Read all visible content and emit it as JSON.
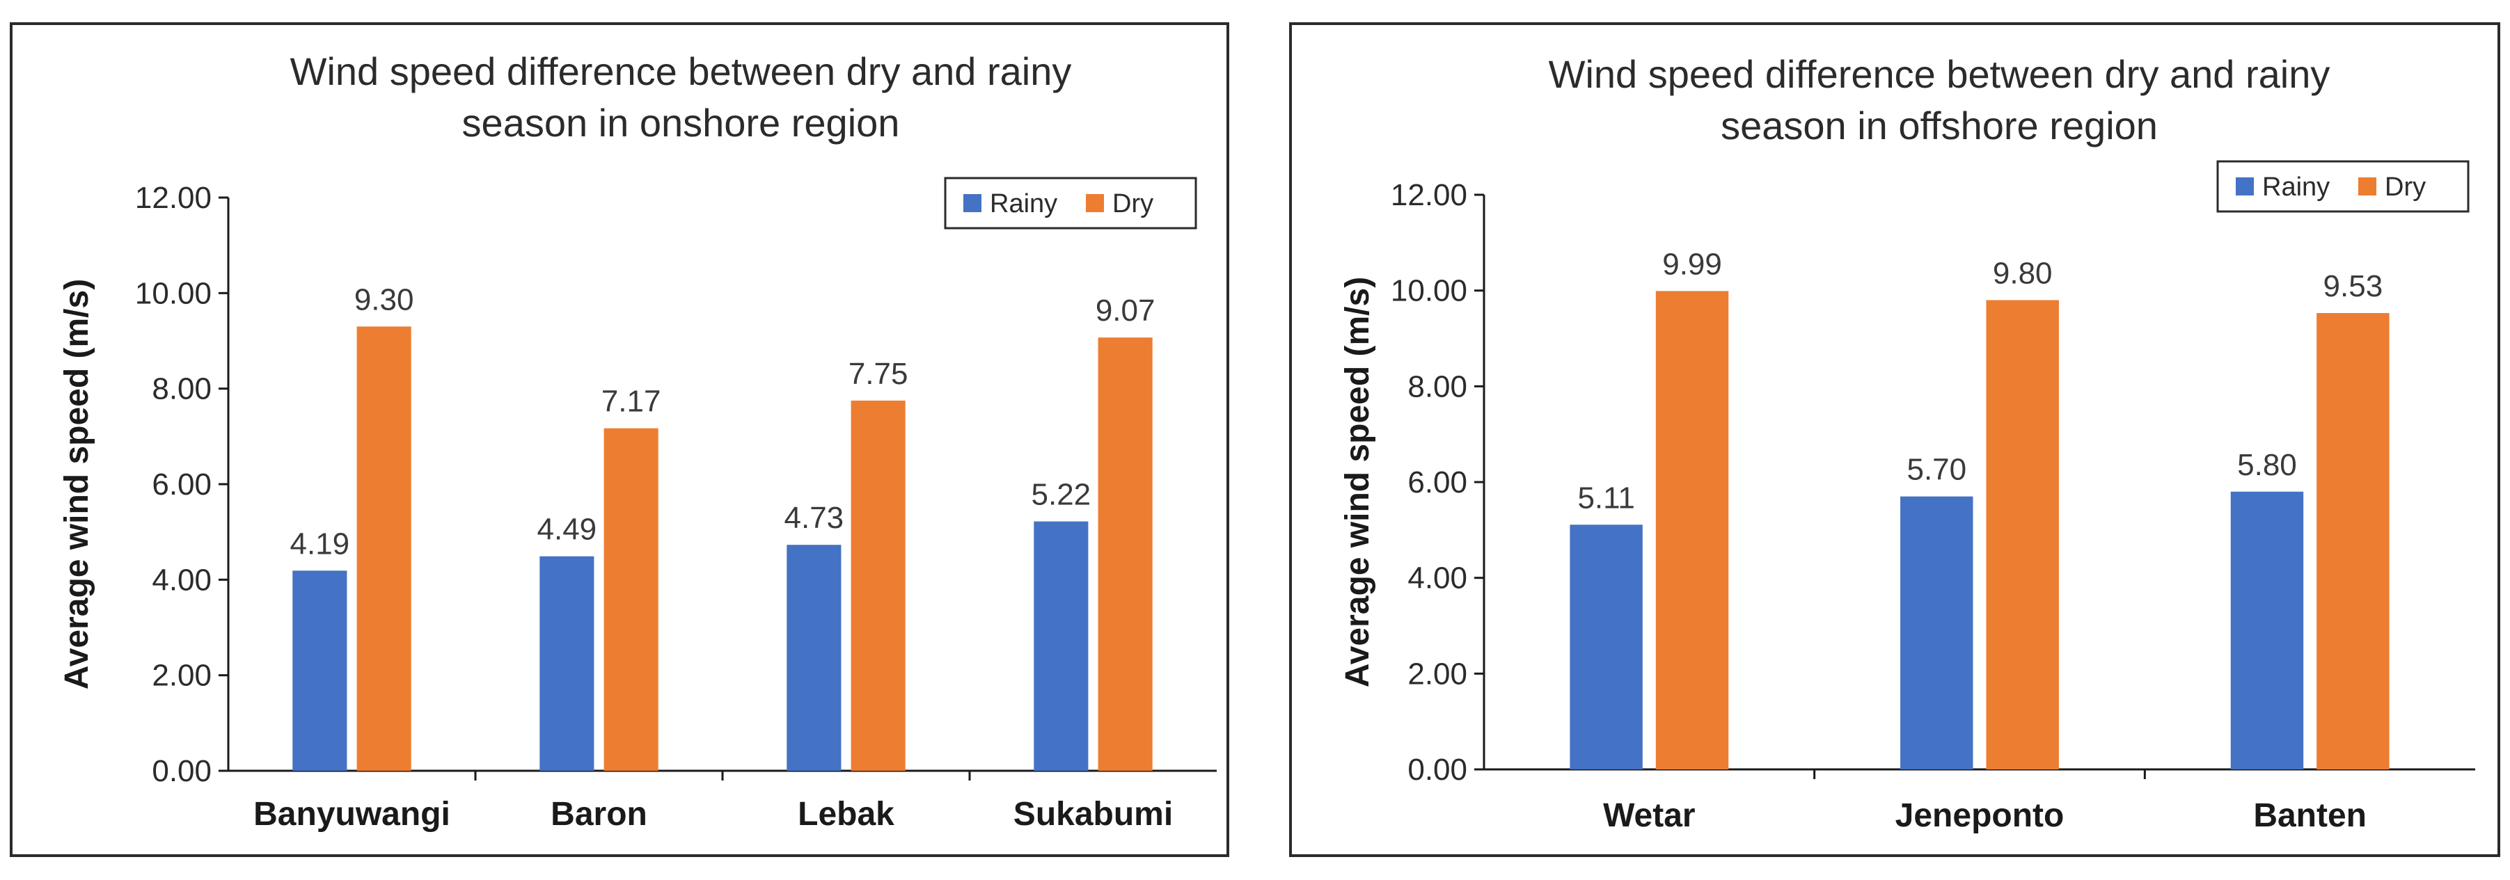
{
  "chart_data": [
    {
      "type": "bar",
      "title_lines": [
        "Wind speed difference between dry and rainy",
        "season in onshore region"
      ],
      "ylabel": "Average wind speed (m/s)",
      "xlabel": "",
      "categories": [
        "Banyuwangi",
        "Baron",
        "Lebak",
        "Sukabumi"
      ],
      "series": [
        {
          "name": "Rainy",
          "color": "#4472C4",
          "values": [
            4.19,
            4.49,
            4.73,
            5.22
          ],
          "labels": [
            "4.19",
            "4.49",
            "4.73",
            "5.22"
          ]
        },
        {
          "name": "Dry",
          "color": "#ED7D31",
          "values": [
            9.3,
            7.17,
            7.75,
            9.07
          ],
          "labels": [
            "9.30",
            "7.17",
            "7.75",
            "9.07"
          ]
        }
      ],
      "ylim": [
        0,
        12
      ],
      "yticks": [
        "0.00",
        "2.00",
        "4.00",
        "6.00",
        "8.00",
        "10.00",
        "12.00"
      ],
      "legend_position": "top-right",
      "grid": false
    },
    {
      "type": "bar",
      "title_lines": [
        "Wind speed difference between dry and rainy",
        "season in offshore region"
      ],
      "ylabel": "Average wind speed (m/s)",
      "xlabel": "",
      "categories": [
        "Wetar",
        "Jeneponto",
        "Banten"
      ],
      "series": [
        {
          "name": "Rainy",
          "color": "#4472C4",
          "values": [
            5.11,
            5.7,
            5.8
          ],
          "labels": [
            "5.11",
            "5.70",
            "5.80"
          ]
        },
        {
          "name": "Dry",
          "color": "#ED7D31",
          "values": [
            9.99,
            9.8,
            9.53
          ],
          "labels": [
            "9.99",
            "9.80",
            "9.53"
          ]
        }
      ],
      "ylim": [
        0,
        12
      ],
      "yticks": [
        "0.00",
        "2.00",
        "4.00",
        "6.00",
        "8.00",
        "10.00",
        "12.00"
      ],
      "legend_position": "top-right",
      "grid": false
    }
  ]
}
